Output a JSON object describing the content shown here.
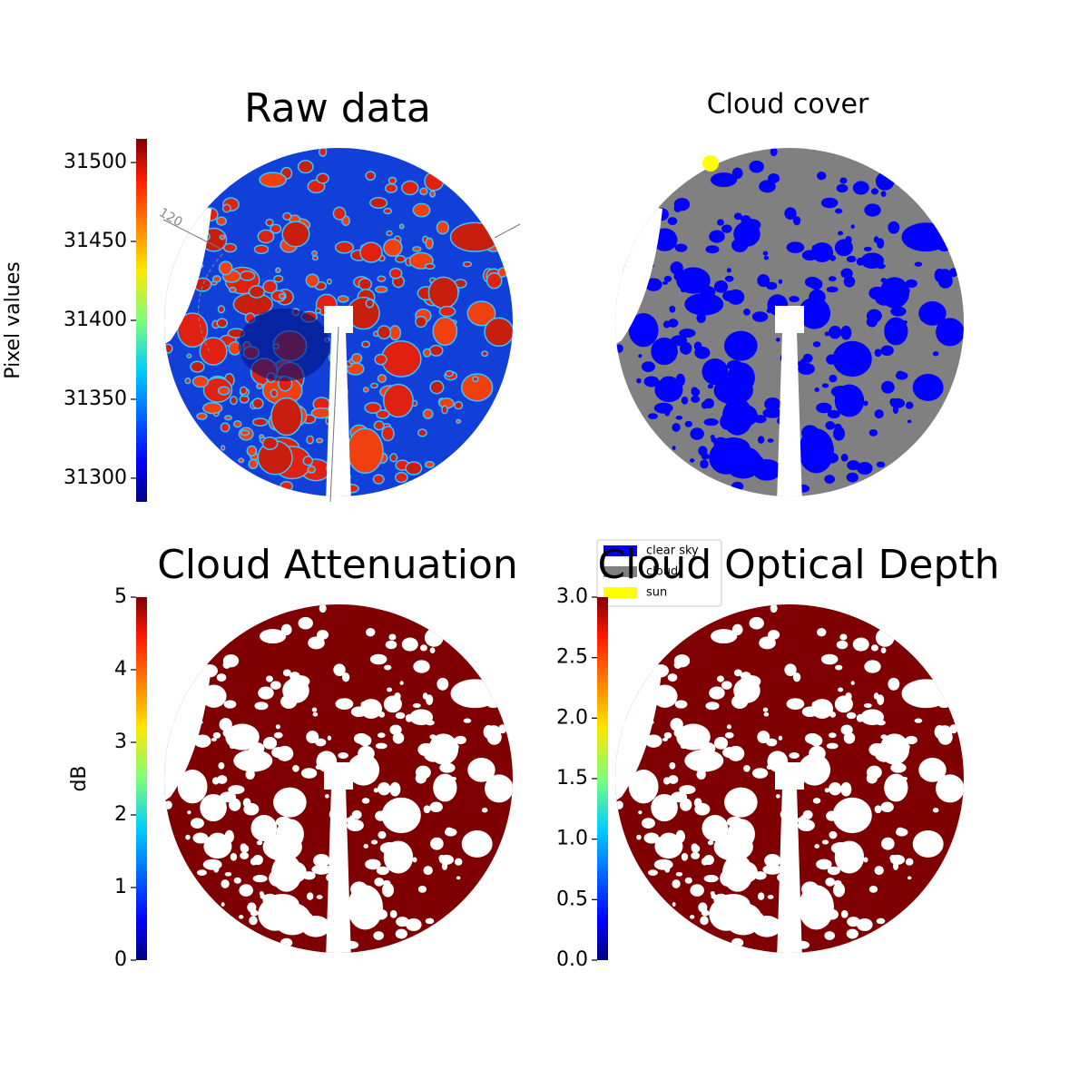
{
  "chart_data": [
    {
      "type": "image",
      "title": "Raw data",
      "colorbar_label": "Pixel values",
      "clim": [
        31285,
        31515
      ],
      "cticks": [
        31300,
        31350,
        31400,
        31450,
        31500
      ],
      "annotations": [
        "120"
      ]
    },
    {
      "type": "image",
      "title": "Cloud cover",
      "legend": [
        {
          "name": "clear sky",
          "color": "#0000ff"
        },
        {
          "name": "cloud",
          "color": "#808080"
        },
        {
          "name": "sun",
          "color": "#ffff00"
        }
      ]
    },
    {
      "type": "image",
      "title": "Cloud Attenuation",
      "colorbar_label": "dB",
      "clim": [
        0,
        5
      ],
      "cticks": [
        0,
        1,
        2,
        3,
        4,
        5
      ]
    },
    {
      "type": "image",
      "title": "Cloud Optical Depth",
      "clim": [
        0,
        3
      ],
      "cticks": [
        {
          "value": 0,
          "label": "0.0"
        },
        0.5,
        {
          "value": 1,
          "label": "1.0"
        },
        1.5,
        {
          "value": 2,
          "label": "2.0"
        },
        2.5,
        {
          "value": 3,
          "label": "3.0"
        }
      ]
    }
  ]
}
